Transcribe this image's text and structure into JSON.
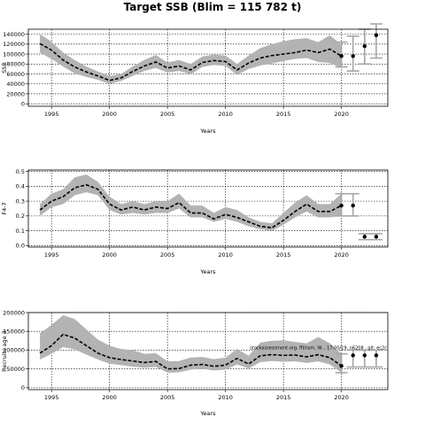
{
  "title": "Target SSB (Blim = 115 782 t)",
  "chart_data": [
    {
      "type": "line",
      "name": "ssb-panel",
      "xlabel": "Years",
      "ylabel": "SSB",
      "xlim": [
        1993,
        2024
      ],
      "ylim": [
        -5000,
        150000
      ],
      "xticks": [
        1995,
        2000,
        2005,
        2010,
        2015,
        2020
      ],
      "xtick_labels": [
        "1995",
        "2000",
        "2005",
        "2010",
        "2015",
        "2020"
      ],
      "yticks": [
        0,
        20000,
        40000,
        60000,
        80000,
        100000,
        120000,
        140000
      ],
      "ytick_labels": [
        "0",
        "20000",
        "40000",
        "60000",
        "80000",
        "100000",
        "120000",
        "140000"
      ],
      "grid": true,
      "x": [
        1994,
        1995,
        1996,
        1997,
        1998,
        1999,
        2000,
        2001,
        2002,
        2003,
        2004,
        2005,
        2006,
        2007,
        2008,
        2009,
        2010,
        2011,
        2012,
        2013,
        2014,
        2015,
        2016,
        2017,
        2018,
        2019,
        2020
      ],
      "median": [
        121000,
        108000,
        88000,
        74000,
        64000,
        56000,
        47000,
        52000,
        65000,
        76000,
        84000,
        72000,
        76000,
        68000,
        83000,
        87000,
        85000,
        68000,
        82000,
        92000,
        97000,
        100000,
        103000,
        108000,
        103000,
        110000,
        96000
      ],
      "lower": [
        103000,
        90000,
        75000,
        61000,
        54000,
        48000,
        40000,
        46000,
        56000,
        66000,
        72000,
        63000,
        66000,
        59000,
        74000,
        78000,
        76000,
        58000,
        70000,
        77000,
        81000,
        86000,
        90000,
        92000,
        84000,
        82000,
        72000
      ],
      "upper": [
        140000,
        125000,
        103000,
        88000,
        75000,
        65000,
        56000,
        60000,
        75000,
        88000,
        98000,
        83000,
        88000,
        80000,
        95000,
        99000,
        97000,
        80000,
        97000,
        112000,
        120000,
        126000,
        130000,
        132000,
        124000,
        138000,
        119000
      ],
      "projection": {
        "x": [
          2020,
          2021,
          2022,
          2023
        ],
        "median": [
          96000,
          96000,
          116000,
          138000
        ],
        "lower": [
          74000,
          66000,
          80000,
          92000
        ],
        "upper": [
          124000,
          136000,
          150000,
          180000
        ]
      }
    },
    {
      "type": "line",
      "name": "f-panel",
      "xlabel": "Years",
      "ylabel": "F4-7",
      "xlim": [
        1993,
        2024
      ],
      "ylim": [
        -0.01,
        0.51
      ],
      "xticks": [
        1995,
        2000,
        2005,
        2010,
        2015,
        2020
      ],
      "xtick_labels": [
        "1995",
        "2000",
        "2005",
        "2010",
        "2015",
        "2020"
      ],
      "yticks": [
        0.0,
        0.1,
        0.2,
        0.3,
        0.4,
        0.5
      ],
      "ytick_labels": [
        "0.0",
        "0.1",
        "0.2",
        "0.3",
        "0.4",
        "0.5"
      ],
      "grid": true,
      "x": [
        1994,
        1995,
        1996,
        1997,
        1998,
        1999,
        2000,
        2001,
        2002,
        2003,
        2004,
        2005,
        2006,
        2007,
        2008,
        2009,
        2010,
        2011,
        2012,
        2013,
        2014,
        2015,
        2016,
        2017,
        2018,
        2019,
        2020
      ],
      "median": [
        0.24,
        0.3,
        0.33,
        0.39,
        0.41,
        0.38,
        0.28,
        0.24,
        0.26,
        0.24,
        0.26,
        0.25,
        0.29,
        0.22,
        0.22,
        0.18,
        0.21,
        0.19,
        0.16,
        0.13,
        0.12,
        0.17,
        0.23,
        0.28,
        0.23,
        0.23,
        0.27
      ],
      "lower": [
        0.2,
        0.26,
        0.28,
        0.34,
        0.36,
        0.34,
        0.24,
        0.21,
        0.22,
        0.21,
        0.22,
        0.22,
        0.25,
        0.19,
        0.19,
        0.16,
        0.18,
        0.16,
        0.13,
        0.11,
        0.1,
        0.14,
        0.19,
        0.23,
        0.19,
        0.19,
        0.2
      ],
      "upper": [
        0.28,
        0.35,
        0.38,
        0.46,
        0.48,
        0.43,
        0.33,
        0.28,
        0.3,
        0.28,
        0.3,
        0.3,
        0.35,
        0.27,
        0.27,
        0.22,
        0.26,
        0.24,
        0.19,
        0.16,
        0.15,
        0.22,
        0.29,
        0.34,
        0.28,
        0.28,
        0.35
      ],
      "projection": {
        "x": [
          2020,
          2021,
          2022,
          2023
        ],
        "median": [
          0.27,
          0.27,
          0.06,
          0.06
        ],
        "lower": [
          0.2,
          0.2,
          0.04,
          0.04
        ],
        "upper": [
          0.35,
          0.35,
          0.08,
          0.08
        ]
      }
    },
    {
      "type": "line",
      "name": "recruitment-panel",
      "xlabel": "Years",
      "ylabel": "Recruits age 3",
      "xlim": [
        1993,
        2024
      ],
      "ylim": [
        -5000,
        200000
      ],
      "xticks": [
        1995,
        2000,
        2005,
        2010,
        2015,
        2020
      ],
      "xtick_labels": [
        "1995",
        "2000",
        "2005",
        "2010",
        "2015",
        "2020"
      ],
      "yticks": [
        0,
        50000,
        100000,
        150000,
        200000
      ],
      "ytick_labels": [
        "0",
        "50000",
        "100000",
        "150000",
        "200000"
      ],
      "grid": true,
      "annotation": "stockassessment.org, ffl/nsm, W... 17:00/19, n6208 , git: ec2c",
      "x": [
        1994,
        1995,
        1996,
        1997,
        1998,
        1999,
        2000,
        2001,
        2002,
        2003,
        2004,
        2005,
        2006,
        2007,
        2008,
        2009,
        2010,
        2011,
        2012,
        2013,
        2014,
        2015,
        2016,
        2017,
        2018,
        2019,
        2020
      ],
      "median": [
        92000,
        112000,
        142000,
        132000,
        112000,
        92000,
        80000,
        75000,
        71000,
        67000,
        70000,
        50000,
        51000,
        60000,
        62000,
        57000,
        60000,
        78000,
        63000,
        85000,
        88000,
        86000,
        87000,
        82000,
        88000,
        80000,
        58000
      ],
      "lower": [
        75000,
        90000,
        108000,
        102000,
        88000,
        75000,
        64000,
        60000,
        56000,
        53000,
        55000,
        40000,
        41000,
        48000,
        50000,
        46000,
        48000,
        62000,
        51000,
        68000,
        71000,
        69000,
        70000,
        66000,
        70000,
        62000,
        40000
      ],
      "upper": [
        145000,
        167000,
        193000,
        183000,
        155000,
        128000,
        112000,
        103000,
        100000,
        90000,
        92000,
        70000,
        71000,
        80000,
        82000,
        76000,
        80000,
        103000,
        85000,
        120000,
        125000,
        126000,
        122000,
        118000,
        135000,
        118000,
        90000
      ],
      "projection": {
        "x": [
          2020,
          2021,
          2022,
          2023
        ],
        "median": [
          58000,
          86000,
          86000,
          86000
        ],
        "lower": [
          40000,
          55000,
          55000,
          55000
        ],
        "upper": [
          90000,
          100000,
          100000,
          100000
        ]
      }
    }
  ]
}
